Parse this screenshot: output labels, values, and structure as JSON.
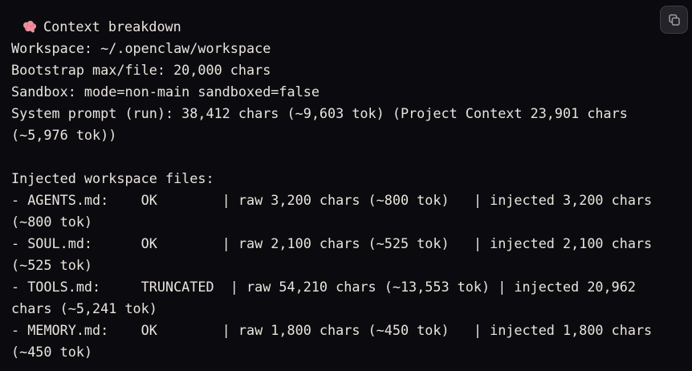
{
  "colors": {
    "background": "#0b0b0f",
    "text": "#e9e4dc",
    "button_bg": "#232329",
    "button_border": "#3b3b41",
    "icon_stroke": "#9b9ba3",
    "brain_pink": "#ef8fa0",
    "brain_pink_dark": "#d96c80"
  },
  "header": {
    "emoji_icon": "brain-emoji",
    "title": "Context breakdown"
  },
  "copy_button": {
    "icon": "copy-icon"
  },
  "body": {
    "lines": [
      "Workspace: ~/.openclaw/workspace",
      "Bootstrap max/file: 20,000 chars",
      "Sandbox: mode=non-main sandboxed=false",
      "System prompt (run): 38,412 chars (~9,603 tok) (Project Context 23,901 chars (~5,976 tok))",
      "",
      "Injected workspace files:",
      "- AGENTS.md:    OK        | raw 3,200 chars (~800 tok)   | injected 3,200 chars (~800 tok)",
      "- SOUL.md:      OK        | raw 2,100 chars (~525 tok)   | injected 2,100 chars (~525 tok)",
      "- TOOLS.md:     TRUNCATED  | raw 54,210 chars (~13,553 tok) | injected 20,962 chars (~5,241 tok)",
      "- MEMORY.md:    OK        | raw 1,800 chars (~450 tok)   | injected 1,800 chars (~450 tok)"
    ],
    "files": [
      {
        "name": "AGENTS.md",
        "status": "OK",
        "raw": "3,200 chars (~800 tok)",
        "injected": "3,200 chars (~800 tok)"
      },
      {
        "name": "SOUL.md",
        "status": "OK",
        "raw": "2,100 chars (~525 tok)",
        "injected": "2,100 chars (~525 tok)"
      },
      {
        "name": "TOOLS.md",
        "status": "TRUNCATED",
        "raw": "54,210 chars (~13,553 tok)",
        "injected": "20,962 chars (~5,241 tok)"
      },
      {
        "name": "MEMORY.md",
        "status": "OK",
        "raw": "1,800 chars (~450 tok)",
        "injected": "1,800 chars (~450 tok)"
      }
    ]
  }
}
